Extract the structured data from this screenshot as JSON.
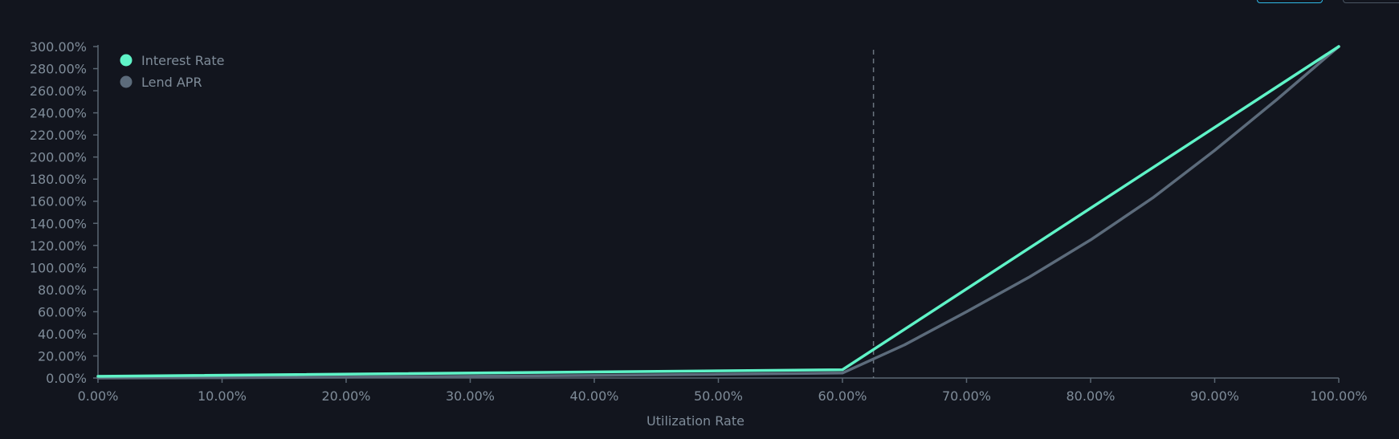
{
  "chart_data": {
    "type": "line",
    "xlabel": "Utilization Rate",
    "ylabel": "",
    "x_ticks": [
      "0.00%",
      "10.00%",
      "20.00%",
      "30.00%",
      "40.00%",
      "50.00%",
      "60.00%",
      "70.00%",
      "80.00%",
      "90.00%",
      "100.00%"
    ],
    "y_ticks": [
      "0.00%",
      "20.00%",
      "40.00%",
      "60.00%",
      "80.00%",
      "100.00%",
      "120.00%",
      "140.00%",
      "160.00%",
      "180.00%",
      "200.00%",
      "220.00%",
      "240.00%",
      "260.00%",
      "280.00%",
      "300.00%"
    ],
    "xlim": [
      0,
      100
    ],
    "ylim": [
      0,
      300
    ],
    "grid": false,
    "legend_position": "top-left",
    "current_utilization": 62.5,
    "series": [
      {
        "name": "Interest Rate",
        "color": "#5ff3c7",
        "x": [
          0,
          60,
          100
        ],
        "y": [
          1.5,
          7.5,
          300
        ]
      },
      {
        "name": "Lend APR",
        "color": "#5c6b7b",
        "x": [
          0,
          10,
          20,
          30,
          40,
          50,
          60,
          65,
          70,
          75,
          80,
          85,
          90,
          95,
          100
        ],
        "y": [
          0,
          0.3,
          0.8,
          1.5,
          2.4,
          3.4,
          4.5,
          30,
          60,
          91,
          125,
          163,
          206,
          252,
          300
        ]
      }
    ]
  },
  "colors": {
    "background": "#12151e",
    "axis": "#5a6672",
    "tick_text": "#7f8c99",
    "marker_line": "#6b7580"
  }
}
